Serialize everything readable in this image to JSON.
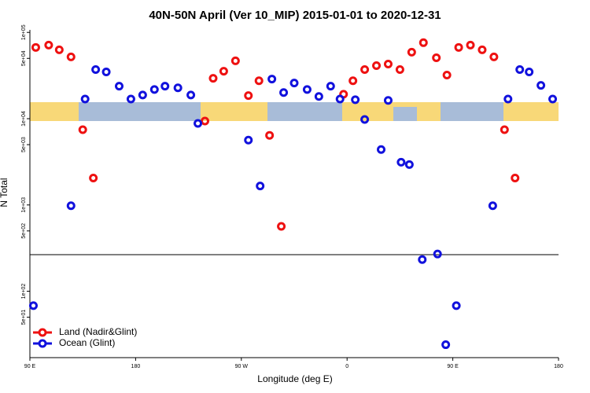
{
  "chart_data": {
    "type": "scatter",
    "title": "40N-50N April (Ver 10_MIP)   2015-01-01 to 2020-12-31",
    "x_label": "Longitude (deg E)",
    "y_label": "N Total",
    "log_y": true,
    "legend": "bottom-left",
    "xlim": [
      90,
      540
    ],
    "xticks": [
      {
        "value": 90,
        "label": "90 E"
      },
      180,
      {
        "value": 270,
        "label": "90 W"
      },
      {
        "value": 360,
        "label": "0"
      },
      {
        "value": 450,
        "label": "90 E"
      },
      {
        "value": 540,
        "label": "180"
      }
    ],
    "ylim": [
      17,
      107000
    ],
    "yticks": [
      {
        "value": 100000,
        "label": "1e+05"
      },
      {
        "value": 50000,
        "label": "5e+04"
      },
      {
        "value": 10000,
        "label": "1e+04"
      },
      {
        "value": 5000,
        "label": "5e+03"
      },
      {
        "value": 1000,
        "label": "1e+03"
      },
      {
        "value": 500,
        "label": "5e+02"
      },
      {
        "value": 100,
        "label": "1e+02"
      },
      {
        "value": 50,
        "label": "5e+01"
      }
    ],
    "series": [
      {
        "name": "Land (Nadir&Glint)",
        "color": "#ee1111",
        "x": [
          95,
          106,
          115,
          125,
          135,
          144,
          239,
          246,
          255,
          265,
          276,
          285,
          294,
          304,
          357,
          365,
          375,
          385,
          395,
          405,
          415,
          425,
          436,
          445,
          455,
          465,
          475,
          485,
          494,
          503
        ],
        "values": [
          67000,
          71300,
          62800,
          52000,
          7450,
          2050,
          9380,
          29400,
          35500,
          46800,
          18500,
          27500,
          6410,
          565,
          19200,
          27500,
          37100,
          41200,
          43000,
          37100,
          59000,
          76000,
          50800,
          32000,
          67000,
          71300,
          62800,
          52000,
          7450,
          2050
        ]
      },
      {
        "name": "Ocean (Glint)",
        "color": "#1111dd",
        "x": [
          93,
          125,
          137,
          146,
          155,
          166,
          176,
          186,
          196,
          205,
          216,
          227,
          233,
          276,
          286,
          296,
          306,
          315,
          326,
          336,
          346,
          354,
          367,
          375,
          389,
          395,
          406,
          413,
          424,
          437,
          444,
          453,
          484,
          497,
          507,
          515,
          525,
          535
        ],
        "values": [
          68,
          980,
          16900,
          37100,
          34800,
          23800,
          16900,
          18800,
          21800,
          23800,
          22800,
          18800,
          8810,
          5650,
          1660,
          28800,
          20100,
          25900,
          21800,
          18100,
          23800,
          16900,
          16600,
          9790,
          4390,
          16300,
          3130,
          2940,
          233,
          270,
          24,
          68,
          980,
          16900,
          37100,
          34800,
          24300,
          16900
        ]
      }
    ]
  }
}
